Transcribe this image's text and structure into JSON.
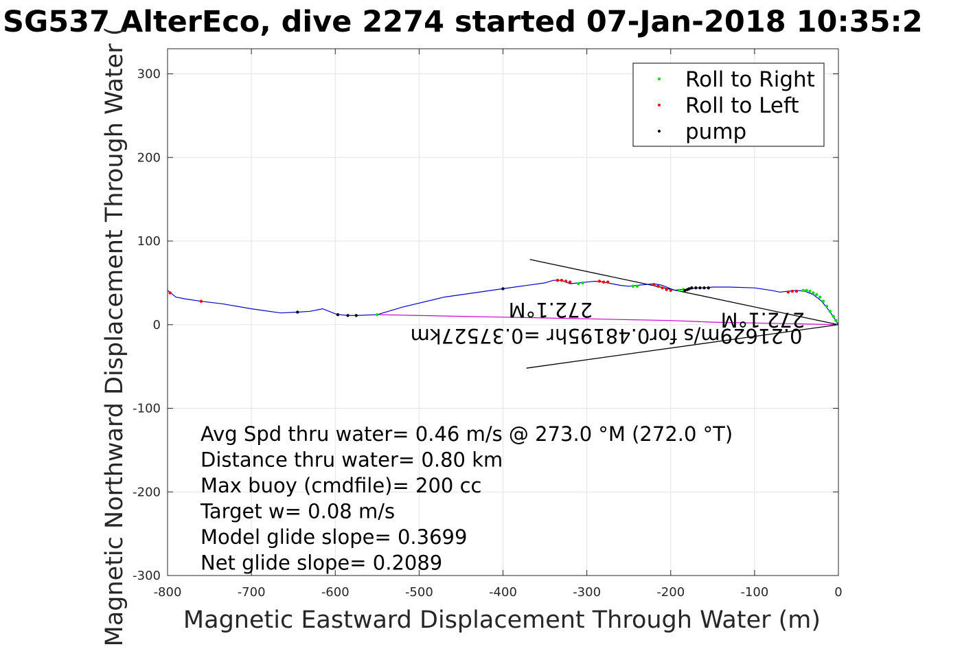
{
  "chart_data": {
    "type": "line",
    "title": "SG537 AlterEco, dive 2274 started 07-Jan-2018 10:35:2",
    "xlabel": "Magnetic Eastward Displacement Through Water (m)",
    "ylabel": "Magnetic Northward Displacement Through Water (",
    "xlim": [
      -800,
      0
    ],
    "ylim": [
      -300,
      330
    ],
    "x_ticks": [
      -800,
      -700,
      -600,
      -500,
      -400,
      -300,
      -200,
      -100,
      0
    ],
    "y_ticks": [
      -300,
      -200,
      -100,
      0,
      100,
      200,
      300
    ],
    "x_tick_labels": [
      "-800",
      "-700",
      "-600",
      "-500",
      "-400",
      "-300",
      "-200",
      "-100",
      "0"
    ],
    "y_tick_labels": [
      "-300",
      "-200",
      "-100",
      "0",
      "100",
      "200",
      "300"
    ],
    "grid": true,
    "legend_position": "top-right",
    "legend": [
      {
        "label": "Roll to Right",
        "color": "#00dd00"
      },
      {
        "label": "Roll to Left",
        "color": "#ff0000"
      },
      {
        "label": "pump",
        "color": "#000000"
      }
    ],
    "series": [
      {
        "kind": "line",
        "color": "#0000cc",
        "x": [
          0,
          -5,
          -12,
          -20,
          -30,
          -40,
          -50,
          -60,
          -70,
          -80,
          -100,
          -130,
          -150,
          -160,
          -170,
          -175,
          -180,
          -190,
          -195,
          -200,
          -210,
          -220,
          -230,
          -240,
          -250,
          -260,
          -270,
          -280,
          -290,
          -300,
          -310,
          -320,
          -330,
          -340,
          -350,
          -400,
          -470,
          -520,
          -550,
          -575,
          -585,
          -595,
          -600,
          -615,
          -630,
          -645,
          -665,
          -700,
          -735,
          -760,
          -780,
          -790,
          -800
        ],
        "y": [
          0,
          8,
          18,
          28,
          36,
          40,
          41,
          40,
          39,
          41,
          44,
          45,
          45,
          44,
          44,
          43,
          42,
          42,
          41,
          43,
          47,
          49,
          48,
          47,
          46,
          47,
          49,
          51,
          52,
          51,
          50,
          49,
          53,
          53,
          50,
          43,
          33,
          21,
          12,
          11,
          11,
          12,
          13,
          19,
          16,
          15,
          14,
          19,
          25,
          28,
          31,
          33,
          41
        ]
      },
      {
        "kind": "line",
        "color": "#cc00cc",
        "x": [
          0,
          -50,
          -100,
          -150,
          -200,
          -250,
          -300,
          -350,
          -400,
          -450,
          -500,
          -550
        ],
        "y": [
          0,
          1,
          2,
          3,
          5,
          6,
          7,
          8,
          9,
          10,
          11,
          12
        ]
      }
    ],
    "markers": {
      "roll_right": {
        "color": "#00dd00",
        "x": [
          -3,
          -6,
          -10,
          -14,
          -18,
          -22,
          -26,
          -30,
          -34,
          -38,
          -42,
          -185,
          -190,
          -240,
          -245,
          -305,
          -310,
          -550
        ],
        "y": [
          5,
          10,
          16,
          22,
          28,
          33,
          36,
          38,
          40,
          41,
          41,
          42,
          41,
          46,
          46,
          50,
          49,
          12
        ]
      },
      "roll_left": {
        "color": "#ff0000",
        "x": [
          -50,
          -55,
          -60,
          -200,
          -205,
          -210,
          -215,
          -220,
          -275,
          -280,
          -285,
          -320,
          -325,
          -330,
          -335,
          -760,
          -797
        ],
        "y": [
          40,
          40,
          39,
          41,
          42,
          44,
          46,
          48,
          51,
          51,
          52,
          51,
          52,
          53,
          53,
          28,
          38
        ]
      },
      "pump": {
        "color": "#000000",
        "x": [
          -155,
          -160,
          -165,
          -170,
          -175,
          -178,
          -180,
          -183,
          -400,
          -575,
          -585,
          -597,
          -645
        ],
        "y": [
          44,
          44,
          44,
          44,
          44,
          43,
          42,
          41,
          43,
          11,
          11,
          12,
          15
        ]
      }
    },
    "guide_lines": [
      {
        "color": "#000000",
        "x": [
          0,
          -368
        ],
        "y": [
          0,
          78
        ]
      },
      {
        "color": "#000000",
        "x": [
          0,
          -372
        ],
        "y": [
          0,
          -52
        ]
      }
    ],
    "annotations": [
      {
        "text": "272.1°M",
        "x": -40,
        "y": 14,
        "rotation_deg": 180
      },
      {
        "text": "0.21629m/s for0.48195hr =0.37527km",
        "x": -43,
        "y": -5,
        "rotation_deg": 180
      },
      {
        "text": "272.1°M",
        "x": -293,
        "y": 26,
        "rotation_deg": 180
      }
    ],
    "info_lines": [
      "Avg Spd thru water=  0.46 m/s @ 273.0 °M (272.0 °T)",
      "Distance thru water=  0.80 km",
      "Max buoy (cmdfile)= 200 cc",
      "Target w= 0.08 m/s",
      "Model glide slope= 0.3699",
      "Net glide slope= 0.2089"
    ]
  }
}
